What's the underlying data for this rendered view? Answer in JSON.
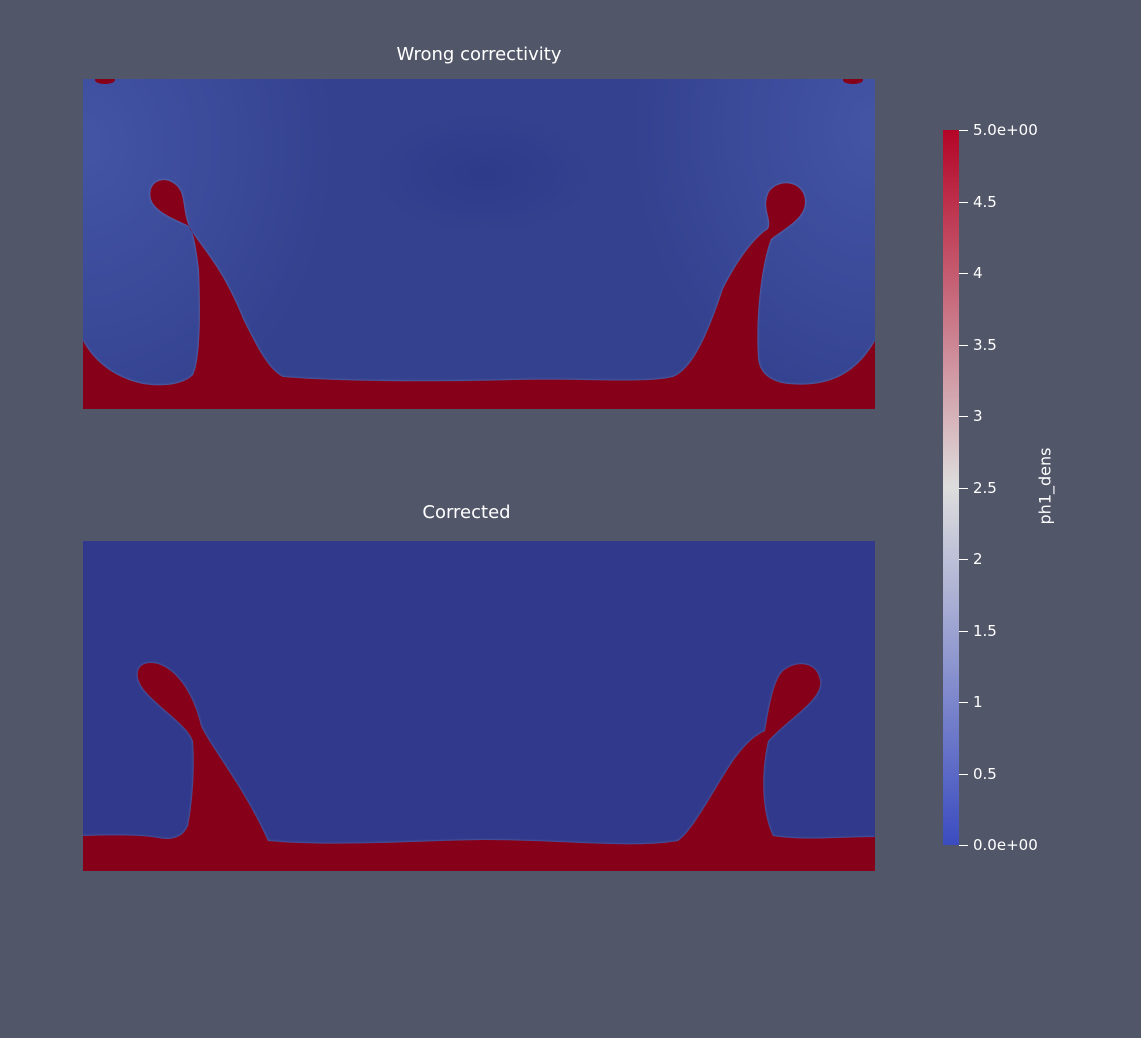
{
  "panels": [
    {
      "title": "Wrong correctivity"
    },
    {
      "title": "Corrected"
    }
  ],
  "colorbar": {
    "title": "ph1_dens",
    "range": [
      0,
      5
    ],
    "colormap": "Cool to Warm",
    "colors": {
      "low": "#3b4cc0",
      "mid": "#dddddd",
      "high": "#b40426"
    },
    "ticks": [
      {
        "value": 5,
        "label": "5.0e+00"
      },
      {
        "value": 4.5,
        "label": "4.5"
      },
      {
        "value": 4,
        "label": "4"
      },
      {
        "value": 3.5,
        "label": "3.5"
      },
      {
        "value": 3,
        "label": "3"
      },
      {
        "value": 2.5,
        "label": "2.5"
      },
      {
        "value": 2,
        "label": "2"
      },
      {
        "value": 1.5,
        "label": "1.5"
      },
      {
        "value": 1,
        "label": "1"
      },
      {
        "value": 0.5,
        "label": "0.5"
      },
      {
        "value": 0,
        "label": "0.0e+00"
      }
    ]
  },
  "colors": {
    "background": "#525669",
    "heavy_fluid": "#870019",
    "light_fluid": "#30398b"
  },
  "chart_data": {
    "type": "heatmap",
    "field": "ph1_dens",
    "value_range": [
      0,
      5
    ],
    "titles": [
      "Wrong correctivity",
      "Corrected"
    ],
    "colorbar_title": "ph1_dens",
    "tick_labels": [
      "5.0e+00",
      "4.5",
      "4",
      "3.5",
      "3",
      "2.5",
      "2",
      "1.5",
      "1",
      "0.5",
      "0.0e+00"
    ]
  }
}
